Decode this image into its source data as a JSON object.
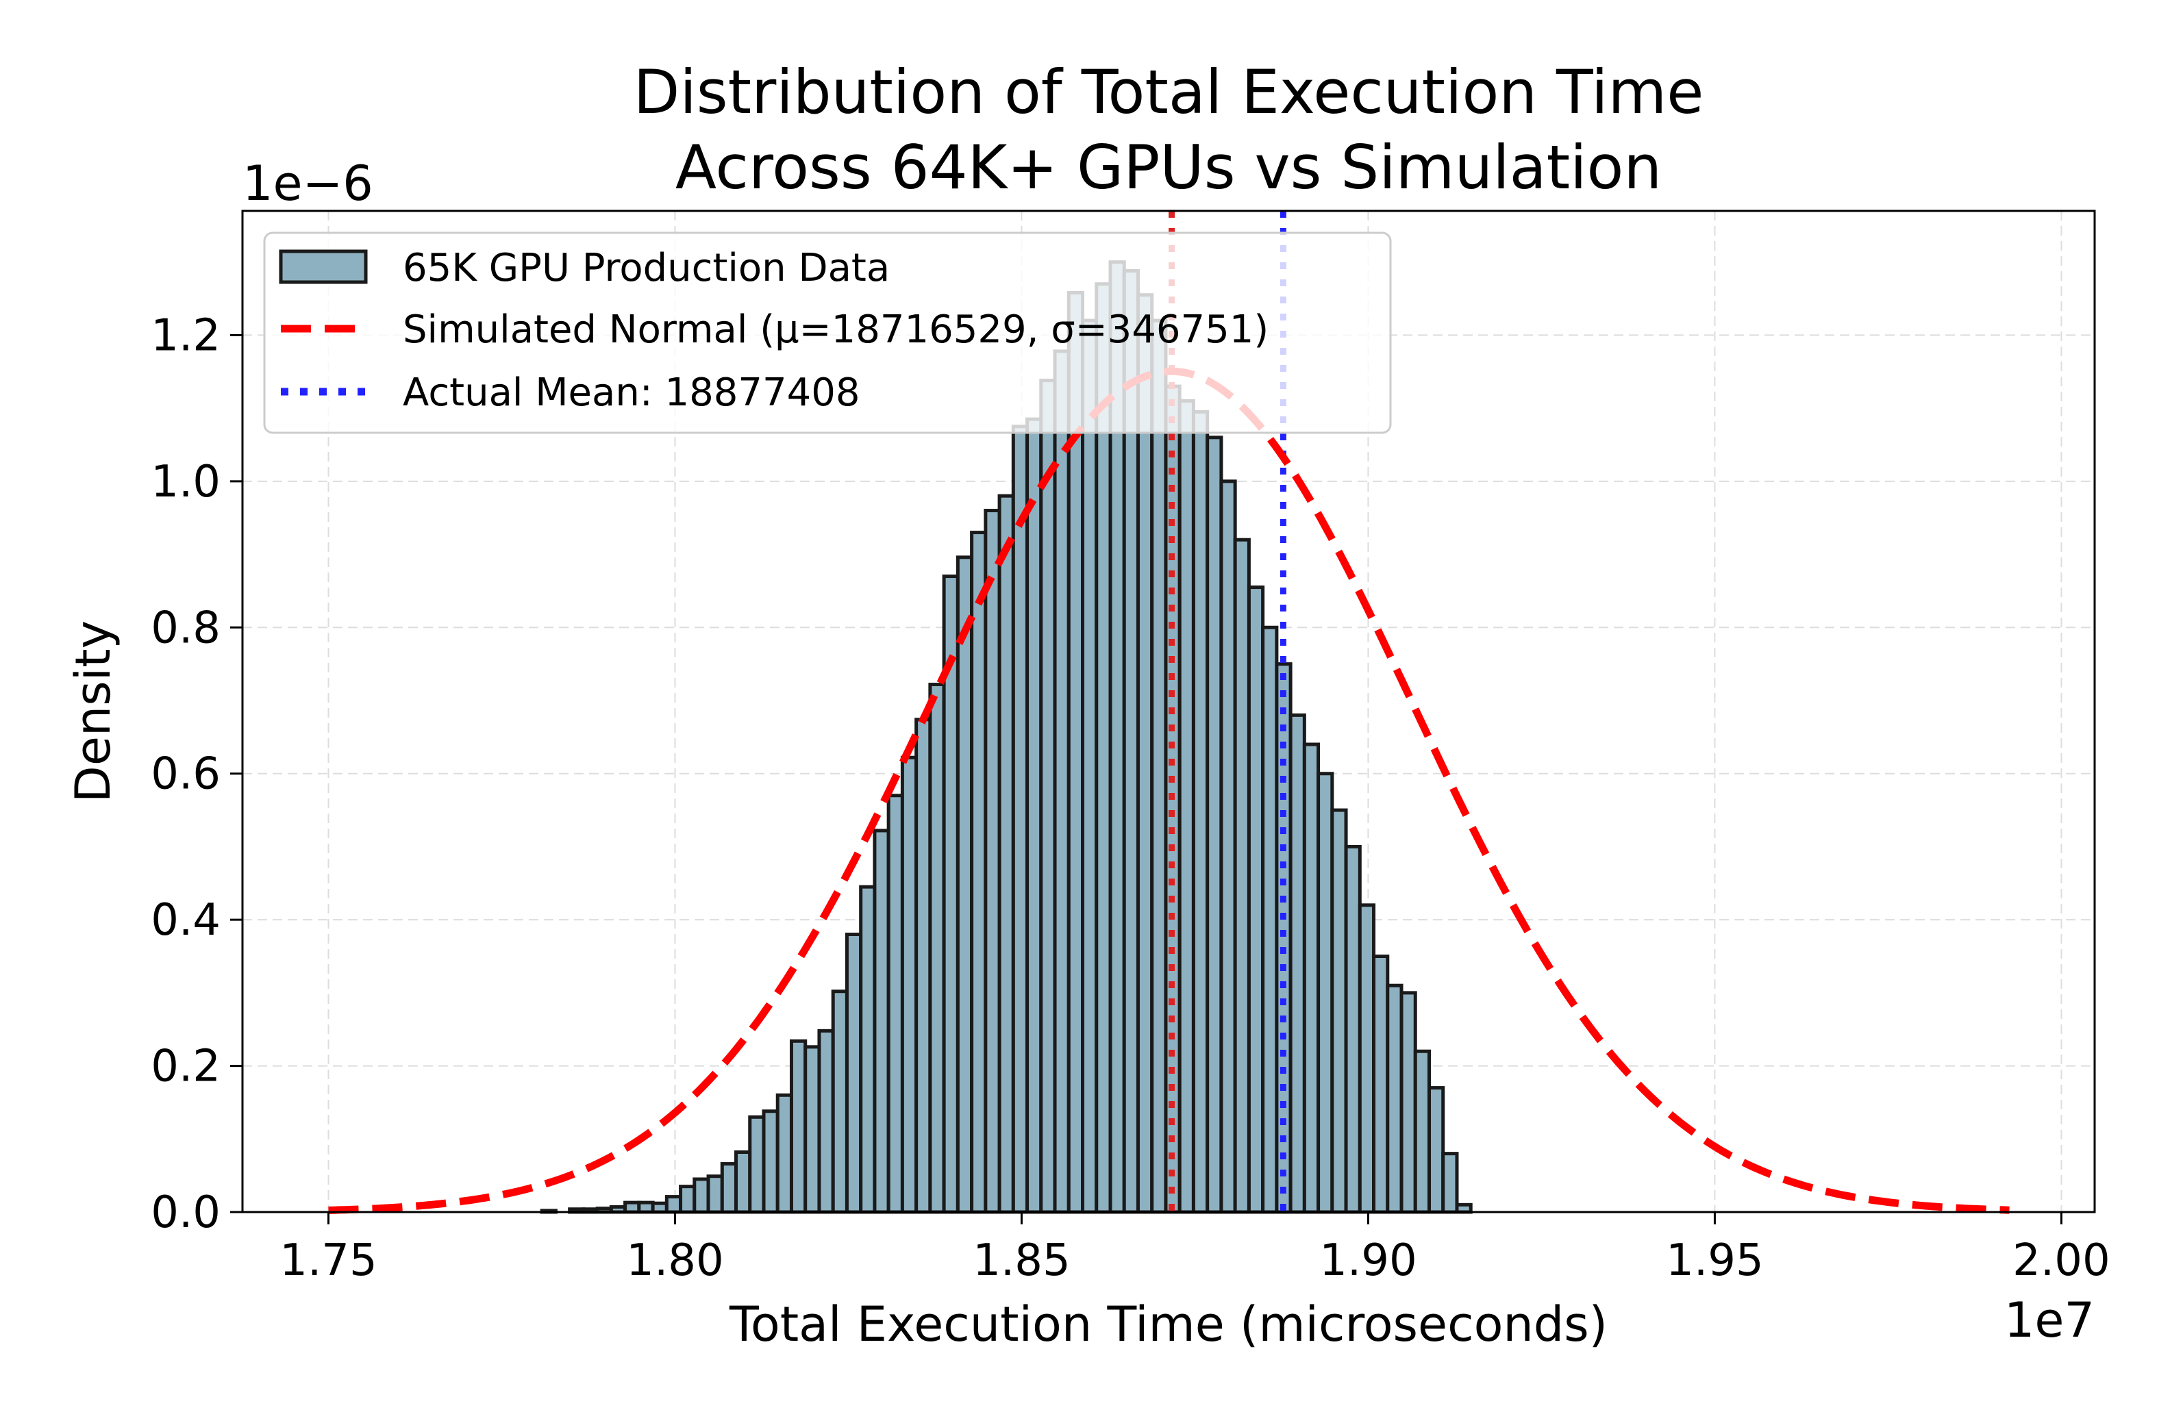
{
  "chart_data": {
    "type": "histogram",
    "title_lines": [
      "Distribution of Total Execution Time",
      "Across 64K+ GPUs vs Simulation"
    ],
    "xlabel": "Total Execution Time (microseconds)",
    "ylabel": "Density",
    "x_offset_label": "1e7",
    "y_offset_label": "1e−6",
    "xlim": [
      1.7376,
      2.0048
    ],
    "ylim": [
      0,
      1.37
    ],
    "x_ticks": [
      1.75,
      1.8,
      1.85,
      1.9,
      1.95,
      2.0
    ],
    "x_tick_labels": [
      "1.75",
      "1.80",
      "1.85",
      "1.90",
      "1.95",
      "2.00"
    ],
    "y_ticks": [
      0.0,
      0.2,
      0.4,
      0.6,
      0.8,
      1.0,
      1.2
    ],
    "y_tick_labels": [
      "0.0",
      "0.2",
      "0.4",
      "0.6",
      "0.8",
      "1.0",
      "1.2"
    ],
    "grid": true,
    "legend_location": "upper-left",
    "histogram": {
      "name": "65K GPU Production Data",
      "color": "#8eb1c1",
      "edge_color": "#1a1a1a",
      "bin_start": 1.7808,
      "bin_width": 0.002,
      "densities": [
        0.002,
        0.0,
        0.004,
        0.004,
        0.005,
        0.007,
        0.013,
        0.013,
        0.012,
        0.021,
        0.035,
        0.045,
        0.049,
        0.066,
        0.082,
        0.13,
        0.138,
        0.16,
        0.234,
        0.226,
        0.248,
        0.302,
        0.38,
        0.445,
        0.522,
        0.57,
        0.622,
        0.674,
        0.722,
        0.87,
        0.896,
        0.93,
        0.96,
        0.98,
        1.075,
        1.085,
        1.138,
        1.178,
        1.258,
        1.22,
        1.27,
        1.3,
        1.288,
        1.255,
        1.22,
        1.13,
        1.11,
        1.095,
        1.06,
        1.0,
        0.92,
        0.855,
        0.8,
        0.75,
        0.68,
        0.64,
        0.6,
        0.55,
        0.5,
        0.42,
        0.35,
        0.31,
        0.3,
        0.22,
        0.17,
        0.08,
        0.01
      ]
    },
    "normal_curve": {
      "name": "Simulated Normal (μ=18716529, σ=346751)",
      "mu": 1.8716529,
      "sigma": 0.0346751,
      "x_range": [
        1.75,
        1.9925
      ],
      "color": "#ff0000"
    },
    "vlines": [
      {
        "name": "Actual Mean: 18877408",
        "x": 1.8877408,
        "color": "#2222ff",
        "in_legend": true
      },
      {
        "name": "Simulated Mean",
        "x": 1.8716529,
        "color": "#dd2222",
        "in_legend": false
      }
    ],
    "legend_entries": [
      "65K GPU Production Data",
      "Simulated Normal (μ=18716529, σ=346751)",
      "Actual Mean: 18877408"
    ]
  }
}
